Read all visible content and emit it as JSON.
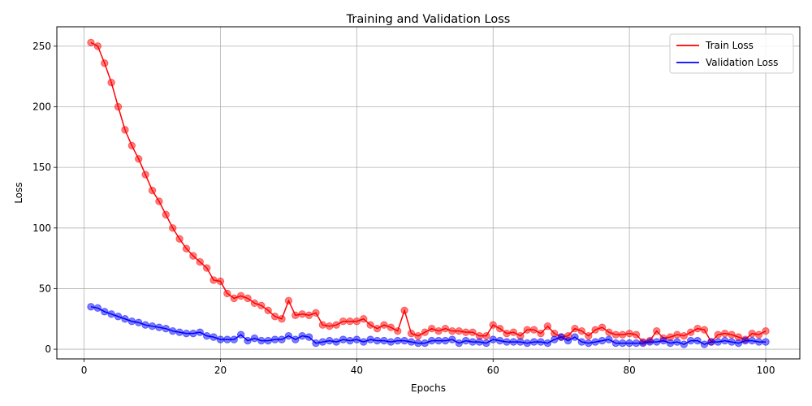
{
  "chart_data": {
    "type": "line",
    "title": "Training and Validation Loss",
    "xlabel": "Epochs",
    "ylabel": "Loss",
    "xlim": [
      -4,
      105
    ],
    "ylim": [
      -8,
      266
    ],
    "xticks": [
      0,
      20,
      40,
      60,
      80,
      100
    ],
    "yticks": [
      0,
      50,
      100,
      150,
      200,
      250
    ],
    "grid": true,
    "legend_position": "top-right",
    "x": [
      1,
      2,
      3,
      4,
      5,
      6,
      7,
      8,
      9,
      10,
      11,
      12,
      13,
      14,
      15,
      16,
      17,
      18,
      19,
      20,
      21,
      22,
      23,
      24,
      25,
      26,
      27,
      28,
      29,
      30,
      31,
      32,
      33,
      34,
      35,
      36,
      37,
      38,
      39,
      40,
      41,
      42,
      43,
      44,
      45,
      46,
      47,
      48,
      49,
      50,
      51,
      52,
      53,
      54,
      55,
      56,
      57,
      58,
      59,
      60,
      61,
      62,
      63,
      64,
      65,
      66,
      67,
      68,
      69,
      70,
      71,
      72,
      73,
      74,
      75,
      76,
      77,
      78,
      79,
      80,
      81,
      82,
      83,
      84,
      85,
      86,
      87,
      88,
      89,
      90,
      91,
      92,
      93,
      94,
      95,
      96,
      97,
      98,
      99,
      100
    ],
    "series": [
      {
        "name": "Train Loss",
        "color": "#ff0000",
        "values": [
          253,
          250,
          236,
          220,
          200,
          181,
          168,
          157,
          144,
          131,
          122,
          111,
          100,
          91,
          83,
          77,
          72,
          67,
          57,
          56,
          46,
          42,
          44,
          42,
          38,
          36,
          32,
          27,
          25,
          40,
          28,
          29,
          28,
          30,
          20,
          19,
          20,
          23,
          23,
          23,
          25,
          20,
          17,
          20,
          18,
          15,
          32,
          13,
          11,
          14,
          17,
          15,
          17,
          15,
          15,
          14,
          14,
          11,
          11,
          20,
          17,
          13,
          14,
          11,
          16,
          16,
          13,
          19,
          13,
          10,
          11,
          17,
          15,
          11,
          16,
          18,
          14,
          12,
          12,
          13,
          12,
          6,
          7,
          15,
          9,
          10,
          12,
          11,
          14,
          17,
          16,
          6,
          12,
          13,
          12,
          10,
          8,
          13,
          12,
          15
        ]
      },
      {
        "name": "Validation Loss",
        "color": "#0000ff",
        "values": [
          35,
          34,
          31,
          29,
          27,
          25,
          23,
          22,
          20,
          19,
          18,
          17,
          15,
          14,
          13,
          13,
          14,
          11,
          10,
          8,
          8,
          8,
          12,
          7,
          9,
          7,
          7,
          8,
          8,
          11,
          8,
          11,
          10,
          5,
          6,
          7,
          6,
          8,
          7,
          8,
          6,
          8,
          7,
          7,
          6,
          7,
          7,
          6,
          5,
          5,
          7,
          7,
          7,
          8,
          5,
          7,
          6,
          6,
          5,
          8,
          7,
          6,
          6,
          6,
          5,
          6,
          6,
          5,
          8,
          10,
          7,
          10,
          6,
          5,
          6,
          7,
          8,
          5,
          5,
          5,
          5,
          5,
          6,
          6,
          7,
          5,
          6,
          4,
          7,
          7,
          4,
          6,
          6,
          7,
          6,
          5,
          7,
          7,
          6,
          6
        ]
      }
    ]
  }
}
